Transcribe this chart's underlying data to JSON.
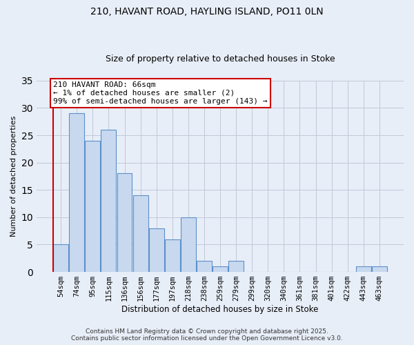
{
  "title1": "210, HAVANT ROAD, HAYLING ISLAND, PO11 0LN",
  "title2": "Size of property relative to detached houses in Stoke",
  "xlabel": "Distribution of detached houses by size in Stoke",
  "ylabel": "Number of detached properties",
  "bin_labels": [
    "54sqm",
    "74sqm",
    "95sqm",
    "115sqm",
    "136sqm",
    "156sqm",
    "177sqm",
    "197sqm",
    "218sqm",
    "238sqm",
    "259sqm",
    "279sqm",
    "299sqm",
    "320sqm",
    "340sqm",
    "361sqm",
    "381sqm",
    "401sqm",
    "422sqm",
    "443sqm",
    "463sqm"
  ],
  "bar_heights": [
    5,
    29,
    24,
    26,
    18,
    14,
    8,
    6,
    10,
    2,
    1,
    2,
    0,
    0,
    0,
    0,
    0,
    0,
    0,
    1,
    1
  ],
  "bar_color": "#c8d9ef",
  "bar_edge_color": "#5b8fc9",
  "vline_color": "#cc0000",
  "annotation_title": "210 HAVANT ROAD: 66sqm",
  "annotation_line2": "← 1% of detached houses are smaller (2)",
  "annotation_line3": "99% of semi-detached houses are larger (143) →",
  "annotation_box_facecolor": "#ffffff",
  "annotation_box_edgecolor": "#cc0000",
  "ylim": [
    0,
    35
  ],
  "yticks": [
    0,
    5,
    10,
    15,
    20,
    25,
    30,
    35
  ],
  "footer1": "Contains HM Land Registry data © Crown copyright and database right 2025.",
  "footer2": "Contains public sector information licensed under the Open Government Licence v3.0.",
  "bg_color": "#e8eef8",
  "plot_bg_color": "#e8eef8",
  "grid_color": "#c0c8d8",
  "title1_fontsize": 10,
  "title2_fontsize": 9,
  "tick_fontsize": 7.5,
  "ylabel_fontsize": 8,
  "xlabel_fontsize": 8.5,
  "footer_fontsize": 6.5,
  "annot_fontsize": 8
}
